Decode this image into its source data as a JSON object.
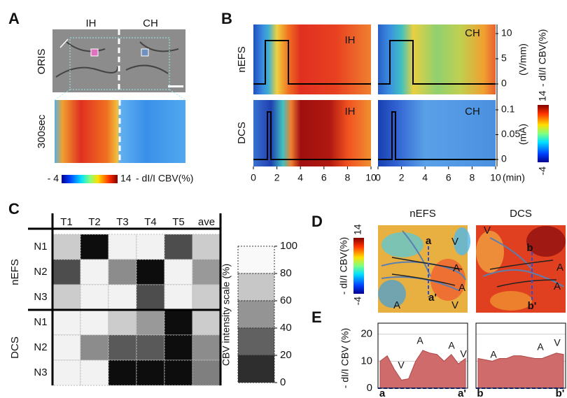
{
  "panel_a": {
    "letter": "A",
    "columns": [
      "IH",
      "CH"
    ],
    "rows": [
      "ORIS",
      "300sec"
    ],
    "colorbar": {
      "min": "- 4",
      "max": "14",
      "unit": "- dI/I CBV(%)"
    }
  },
  "panel_b": {
    "letter": "B",
    "rows": [
      "nEFS",
      "DCS"
    ],
    "map_labels": [
      "IH",
      "CH",
      "IH",
      "CH"
    ],
    "x_ticks": [
      0,
      2,
      4,
      6,
      8,
      10
    ],
    "x_unit": "(min)",
    "nefs_ticks": [
      0,
      5,
      10
    ],
    "nefs_unit": "(V/mm)",
    "dcs_ticks": [
      0,
      0.05,
      0.1
    ],
    "dcs_unit": "(mA)",
    "colorbar": {
      "max": "14",
      "min": "-4",
      "unit": "- dI/I CBV(%)"
    }
  },
  "panel_c": {
    "letter": "C",
    "columns": [
      "T1",
      "T2",
      "T3",
      "T4",
      "T5",
      "ave"
    ],
    "groups": [
      {
        "name": "nEFS",
        "rows": [
          "N1",
          "N2",
          "N3"
        ]
      },
      {
        "name": "DCS",
        "rows": [
          "N1",
          "N2",
          "N3"
        ]
      }
    ],
    "cells": [
      [
        80,
        5,
        95,
        95,
        30,
        80
      ],
      [
        30,
        95,
        55,
        5,
        95,
        60
      ],
      [
        80,
        95,
        95,
        30,
        95,
        80
      ],
      [
        95,
        95,
        80,
        60,
        5,
        80
      ],
      [
        95,
        55,
        35,
        35,
        5,
        55
      ],
      [
        95,
        95,
        5,
        5,
        5,
        50
      ]
    ],
    "scale_title": "CBV intensity  scale (%)",
    "scale_ticks": [
      100,
      80,
      60,
      40,
      20,
      0
    ]
  },
  "panel_d": {
    "letter": "D",
    "titles": [
      "nEFS",
      "DCS"
    ],
    "colorbar": {
      "max": "14",
      "min": "-4",
      "unit": "- dI/I CBV(%)"
    },
    "annotations_left": [
      "a",
      "a'",
      "A",
      "A",
      "A",
      "V",
      "V"
    ],
    "annotations_right": [
      "b",
      "b'",
      "A",
      "A",
      "V"
    ]
  },
  "panel_e": {
    "letter": "E",
    "y_label": "- dI/I CBV (%)",
    "ylim": [
      0,
      22
    ],
    "yticks": [
      0,
      10,
      20
    ],
    "profiles": [
      {
        "values": [
          10,
          12,
          7,
          3,
          3.5,
          10,
          14,
          13,
          12.5,
          10,
          12.5,
          9,
          11
        ],
        "annotations": [
          "V",
          "A",
          "A",
          "V"
        ],
        "start": "a",
        "end": "a'"
      },
      {
        "values": [
          11,
          10.5,
          10,
          11,
          11,
          12,
          12,
          11.5,
          11,
          11,
          12,
          13,
          12.5
        ],
        "annotations": [
          "A",
          "A",
          "V"
        ],
        "start": "b",
        "end": "b'"
      }
    ]
  }
}
